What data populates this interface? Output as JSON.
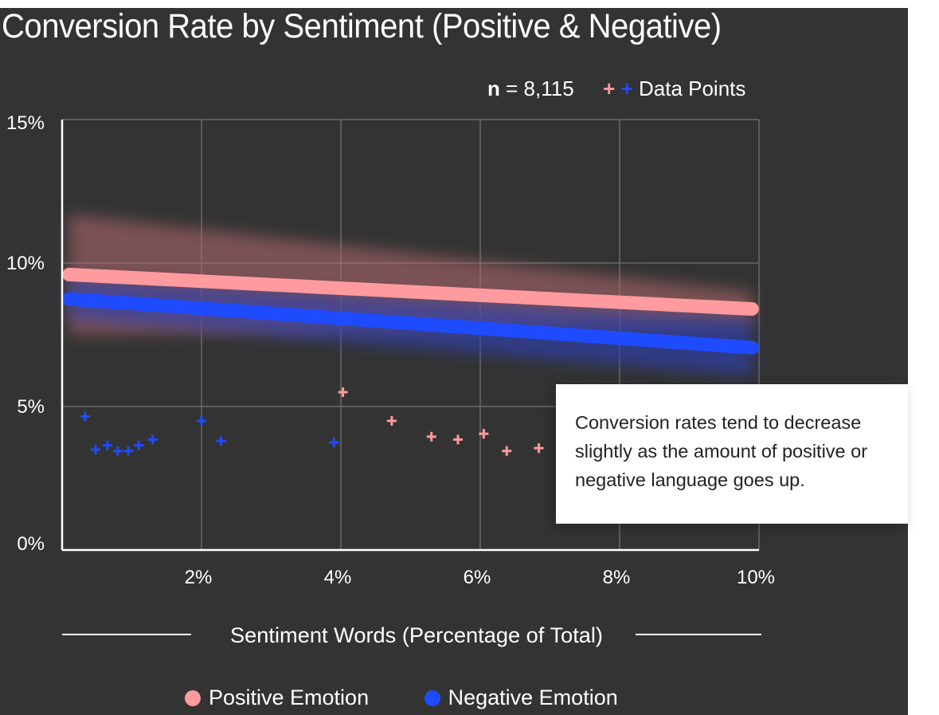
{
  "chart_data": {
    "type": "scatter",
    "title": "Conversion Rate by Sentiment (Positive & Negative)",
    "xlabel": "Sentiment Words (Percentage of Total)",
    "ylabel": "",
    "xlim": [
      0,
      10
    ],
    "ylim": [
      0,
      15
    ],
    "x_ticks": [
      "2%",
      "4%",
      "6%",
      "8%",
      "10%"
    ],
    "y_ticks": [
      "0%",
      "5%",
      "10%",
      "15%"
    ],
    "sample_label": "n",
    "sample_value": "= 8,115",
    "points_legend": "Data Points",
    "grid": true,
    "series": [
      {
        "name": "Positive Emotion",
        "color": "#ff9a9e",
        "points": [
          [
            4.03,
            5.5
          ],
          [
            4.73,
            4.5
          ],
          [
            5.3,
            3.95
          ],
          [
            5.68,
            3.85
          ],
          [
            6.05,
            4.05
          ],
          [
            6.38,
            3.45
          ],
          [
            6.84,
            3.55
          ]
        ],
        "trend": [
          [
            0.1,
            9.6
          ],
          [
            9.9,
            8.4
          ]
        ]
      },
      {
        "name": "Negative Emotion",
        "color": "#1f4bff",
        "points": [
          [
            0.33,
            4.65
          ],
          [
            0.48,
            3.5
          ],
          [
            0.65,
            3.65
          ],
          [
            0.8,
            3.45
          ],
          [
            0.95,
            3.45
          ],
          [
            1.1,
            3.65
          ],
          [
            1.3,
            3.85
          ],
          [
            2.0,
            4.5
          ],
          [
            2.28,
            3.8
          ],
          [
            3.9,
            3.75
          ]
        ],
        "trend": [
          [
            0.1,
            8.75
          ],
          [
            9.9,
            7.05
          ]
        ]
      }
    ],
    "annotation": "Conversion rates tend to decrease slightly as the amount of positive or negative language goes up."
  }
}
